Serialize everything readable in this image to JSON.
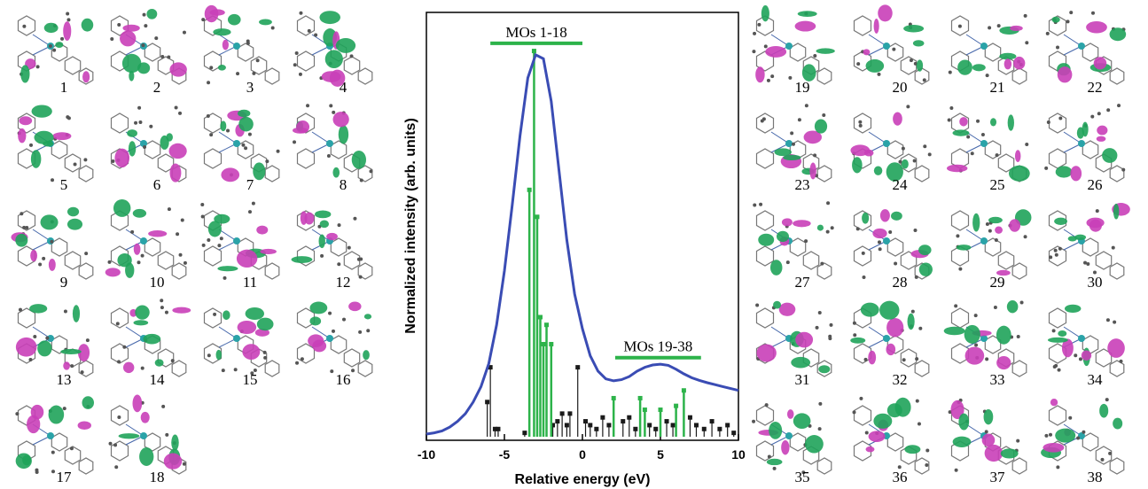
{
  "chart_data": {
    "type": "line",
    "xlabel": "Relative energy (eV)",
    "ylabel": "Normalized intensity (arb. units)",
    "xlim": [
      -10,
      10
    ],
    "xticks": [
      -10,
      -5,
      0,
      5,
      10
    ],
    "ylim": [
      0,
      1.1
    ],
    "x": [
      -10,
      -9.5,
      -9,
      -8.5,
      -8,
      -7.5,
      -7,
      -6.5,
      -6,
      -5.5,
      -5,
      -4.5,
      -4,
      -3.5,
      -3,
      -2.5,
      -2,
      -1.5,
      -1,
      -0.5,
      0,
      0.5,
      1,
      1.5,
      2,
      2.5,
      3,
      3.5,
      4,
      4.5,
      5,
      5.5,
      6,
      6.5,
      7,
      7.5,
      8,
      8.5,
      9,
      9.5,
      10
    ],
    "series": [
      {
        "color": "#3a4cb4",
        "values": [
          0.007,
          0.01,
          0.015,
          0.025,
          0.04,
          0.06,
          0.09,
          0.13,
          0.19,
          0.29,
          0.43,
          0.6,
          0.78,
          0.93,
          0.99,
          0.98,
          0.87,
          0.69,
          0.51,
          0.37,
          0.28,
          0.21,
          0.17,
          0.15,
          0.145,
          0.148,
          0.156,
          0.17,
          0.18,
          0.186,
          0.188,
          0.185,
          0.175,
          0.163,
          0.153,
          0.146,
          0.14,
          0.135,
          0.13,
          0.125,
          0.12
        ]
      }
    ],
    "sticks": [
      {
        "color": "#1a1a1a",
        "x": [
          -6.1,
          -5.9,
          -5.6,
          -5.4,
          -3.7,
          -1.9,
          -1.6,
          -1.3,
          -1.0,
          -0.8,
          -0.3,
          0.2,
          0.5,
          0.9,
          1.3,
          1.7,
          2.6,
          3.0,
          3.4,
          4.3,
          4.7,
          5.4,
          5.8,
          6.9,
          7.3,
          7.8,
          8.3,
          8.8,
          9.3,
          9.7
        ],
        "values": [
          0.09,
          0.18,
          0.02,
          0.02,
          0.01,
          0.03,
          0.04,
          0.06,
          0.03,
          0.06,
          0.18,
          0.04,
          0.03,
          0.02,
          0.05,
          0.03,
          0.04,
          0.05,
          0.02,
          0.03,
          0.02,
          0.04,
          0.03,
          0.05,
          0.03,
          0.02,
          0.04,
          0.02,
          0.03,
          0.01
        ]
      },
      {
        "color": "#2db34a",
        "x": [
          -3.4,
          -3.1,
          -2.9,
          -2.7,
          -2.5,
          -2.3,
          -2.0,
          2.0,
          3.7,
          4.0,
          5.0,
          6.0,
          6.5
        ],
        "values": [
          0.64,
          1.0,
          0.57,
          0.31,
          0.24,
          0.29,
          0.24,
          0.1,
          0.1,
          0.07,
          0.07,
          0.08,
          0.12
        ]
      }
    ],
    "annotations": [
      {
        "text": "MOs 1-18",
        "xrange": [
          -5.9,
          0
        ],
        "y": 1.02
      },
      {
        "text": "MOs 19-38",
        "xrange": [
          2.1,
          7.6
        ],
        "y": 0.205
      }
    ]
  },
  "orbital_panels": {
    "left": [
      "1",
      "2",
      "3",
      "4",
      "5",
      "6",
      "7",
      "8",
      "9",
      "10",
      "11",
      "12",
      "13",
      "14",
      "15",
      "16",
      "17",
      "18"
    ],
    "right": [
      "19",
      "20",
      "21",
      "22",
      "23",
      "24",
      "25",
      "26",
      "27",
      "28",
      "29",
      "30",
      "31",
      "32",
      "33",
      "34",
      "35",
      "36",
      "37",
      "38"
    ]
  }
}
